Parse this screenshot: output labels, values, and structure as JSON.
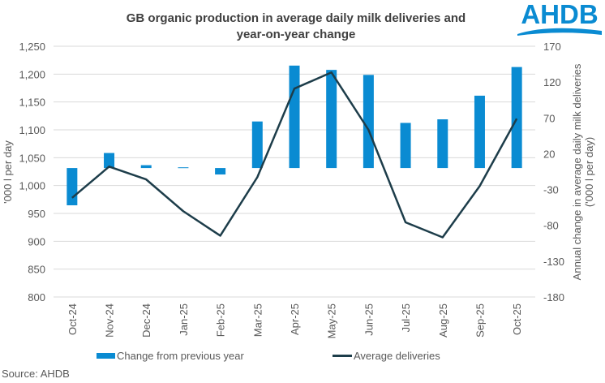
{
  "chart_data": {
    "type": "bar+line",
    "title": "GB organic production in average daily milk deliveries and year-on-year change",
    "title_lines": [
      "GB organic production in average daily milk deliveries and",
      "year-on-year change"
    ],
    "categories": [
      "Oct-24",
      "Nov-24",
      "Dec-24",
      "Jan-25",
      "Feb-25",
      "Mar-25",
      "Apr-25",
      "May-25",
      "Jun-25",
      "Jul-25",
      "Aug-25",
      "Sep-25",
      "Oct-25"
    ],
    "ylabel_left": "'000 l per day",
    "ylabel_right_lines": [
      "Annual change in average daily milk deliveries",
      "('000 l per day)"
    ],
    "ylim_left": [
      800,
      1250
    ],
    "yticks_left": [
      "1,250",
      "1,200",
      "1,150",
      "1,100",
      "1,050",
      "1,000",
      "950",
      "900",
      "850",
      "800"
    ],
    "ylim_right": [
      -180,
      170
    ],
    "yticks_right": [
      "170",
      "120",
      "70",
      "20",
      "-30",
      "-80",
      "-130",
      "-180"
    ],
    "grid": true,
    "legend_position": "bottom",
    "series": [
      {
        "name": "Change from previous year",
        "type": "bar",
        "axis": "right",
        "color": "#0a8bd2",
        "values": [
          -52,
          21,
          4,
          1,
          -9,
          65,
          143,
          137,
          130,
          63,
          68,
          101,
          141
        ]
      },
      {
        "name": "Average deliveries",
        "type": "line",
        "axis": "left",
        "color": "#1d3d4a",
        "values": [
          978,
          1034,
          1011,
          954,
          910,
          1015,
          1174,
          1203,
          1100,
          934,
          907,
          999,
          1120
        ]
      }
    ]
  },
  "source": "Source: AHDB",
  "logo": {
    "text": "AHDB",
    "color": "#0a8bd2"
  }
}
